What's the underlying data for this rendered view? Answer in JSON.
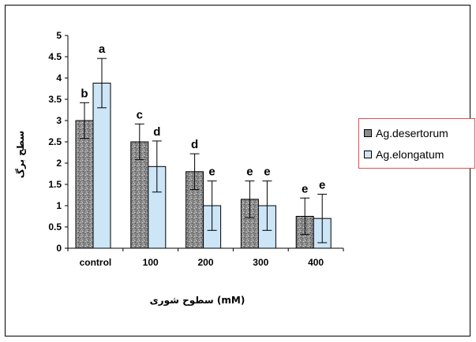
{
  "chart_data": {
    "type": "bar",
    "categories": [
      "control",
      "100",
      "200",
      "300",
      "400"
    ],
    "series": [
      {
        "name": "Ag.desertorum",
        "values": [
          3.0,
          2.5,
          1.8,
          1.15,
          0.75
        ],
        "errors": [
          0.42,
          0.42,
          0.42,
          0.43,
          0.43
        ],
        "letters": [
          "b",
          "c",
          "d",
          "e",
          "e"
        ],
        "color": "#8c8c8c"
      },
      {
        "name": "Ag.elongatum",
        "values": [
          3.88,
          1.92,
          1.0,
          1.0,
          0.7
        ],
        "errors": [
          0.58,
          0.6,
          0.58,
          0.58,
          0.57
        ],
        "letters": [
          "a",
          "d",
          "e",
          "e",
          "e"
        ],
        "color": "#cce5f7"
      }
    ],
    "ylim": [
      0,
      5
    ],
    "yticks": [
      "0",
      "0.5",
      "1",
      "1.5",
      "2",
      "2.5",
      "3",
      "3.5",
      "4",
      "4.5",
      "5"
    ],
    "xlabel": "سطوح شوری (mM)",
    "ylabel": "سطح برگ",
    "legend_position": "right"
  }
}
